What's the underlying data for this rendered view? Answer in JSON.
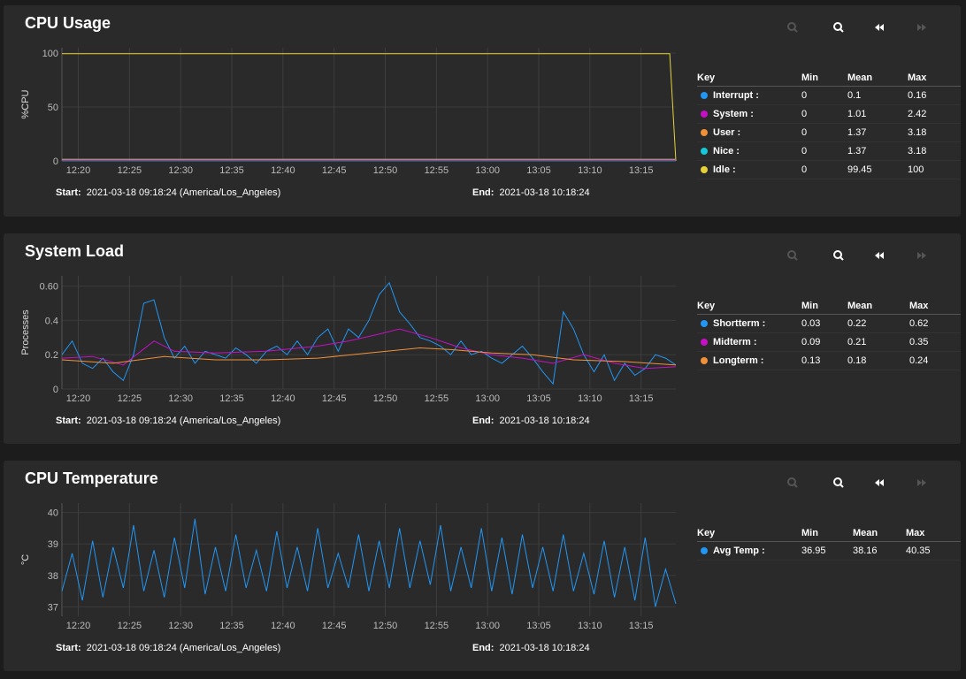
{
  "panels": [
    {
      "id": "cpu",
      "title": "CPU Usage",
      "ylabel": "%CPU",
      "start_label": "Start:",
      "start_value": "2021-03-18 09:18:24 (America/Los_Angeles)",
      "end_label": "End:",
      "end_value": "2021-03-18 10:18:24",
      "legend": {
        "headers": [
          "Key",
          "Min",
          "Mean",
          "Max"
        ],
        "rows": [
          {
            "key": "Interrupt :",
            "color": "#2196f3",
            "min": "0",
            "mean": "0.1",
            "max": "0.16"
          },
          {
            "key": "System :",
            "color": "#c510c5",
            "min": "0",
            "mean": "1.01",
            "max": "2.42"
          },
          {
            "key": "User :",
            "color": "#f0913a",
            "min": "0",
            "mean": "1.37",
            "max": "3.18"
          },
          {
            "key": "Nice :",
            "color": "#14c8d8",
            "min": "0",
            "mean": "1.37",
            "max": "3.18"
          },
          {
            "key": "Idle :",
            "color": "#e6d13a",
            "min": "0",
            "mean": "99.45",
            "max": "100"
          }
        ]
      }
    },
    {
      "id": "load",
      "title": "System Load",
      "ylabel": "Processes",
      "start_label": "Start:",
      "start_value": "2021-03-18 09:18:24 (America/Los_Angeles)",
      "end_label": "End:",
      "end_value": "2021-03-18 10:18:24",
      "legend": {
        "headers": [
          "Key",
          "Min",
          "Mean",
          "Max"
        ],
        "rows": [
          {
            "key": "Shortterm :",
            "color": "#2196f3",
            "min": "0.03",
            "mean": "0.22",
            "max": "0.62"
          },
          {
            "key": "Midterm :",
            "color": "#c510c5",
            "min": "0.09",
            "mean": "0.21",
            "max": "0.35"
          },
          {
            "key": "Longterm :",
            "color": "#f0913a",
            "min": "0.13",
            "mean": "0.18",
            "max": "0.24"
          }
        ]
      }
    },
    {
      "id": "temp",
      "title": "CPU Temperature",
      "ylabel": "°C",
      "start_label": "Start:",
      "start_value": "2021-03-18 09:18:24 (America/Los_Angeles)",
      "end_label": "End:",
      "end_value": "2021-03-18 10:18:24",
      "legend": {
        "headers": [
          "Key",
          "Min",
          "Mean",
          "Max"
        ],
        "rows": [
          {
            "key": "Avg Temp :",
            "color": "#2196f3",
            "min": "36.95",
            "mean": "38.16",
            "max": "40.35"
          }
        ]
      }
    }
  ],
  "toolbar_icons": [
    "zoom-in-icon",
    "zoom-out-icon",
    "rewind-icon",
    "fast-forward-icon"
  ],
  "chart_data": [
    {
      "type": "line",
      "ylabel": "%CPU",
      "x_ticks": [
        "12:20",
        "12:25",
        "12:30",
        "12:35",
        "12:40",
        "12:45",
        "12:50",
        "12:55",
        "13:00",
        "13:05",
        "13:10",
        "13:15"
      ],
      "y_ticks": [
        "0",
        "50",
        "100"
      ],
      "ylim": [
        0,
        105
      ],
      "x_range_minutes": [
        0,
        60
      ],
      "grid": true,
      "series": [
        {
          "name": "Idle",
          "color": "#e6d13a",
          "points": [
            [
              0,
              99.4
            ],
            [
              59.4,
              99.4
            ],
            [
              60,
              0
            ]
          ]
        },
        {
          "name": "Interrupt",
          "color": "#2196f3",
          "points": [
            [
              0,
              0.1
            ],
            [
              60,
              0.1
            ]
          ]
        },
        {
          "name": "Nice",
          "color": "#14c8d8",
          "points": [
            [
              0,
              1.4
            ],
            [
              60,
              1.4
            ]
          ]
        },
        {
          "name": "System",
          "color": "#c510c5",
          "points": [
            [
              0,
              1.0
            ],
            [
              60,
              1.0
            ]
          ]
        },
        {
          "name": "User",
          "color": "#f0913a",
          "points": [
            [
              0,
              1.4
            ],
            [
              60,
              1.4
            ]
          ]
        }
      ]
    },
    {
      "type": "line",
      "ylabel": "Processes",
      "x_ticks": [
        "12:20",
        "12:25",
        "12:30",
        "12:35",
        "12:40",
        "12:45",
        "12:50",
        "12:55",
        "13:00",
        "13:05",
        "13:10",
        "13:15"
      ],
      "y_ticks": [
        "0",
        "0.2",
        "0.4",
        "0.60"
      ],
      "ylim": [
        0,
        0.66
      ],
      "x_range_minutes": [
        0,
        60
      ],
      "grid": true,
      "series": [
        {
          "name": "Shortterm",
          "color": "#2196f3",
          "points": [
            [
              0,
              0.2
            ],
            [
              1,
              0.28
            ],
            [
              2,
              0.15
            ],
            [
              3,
              0.12
            ],
            [
              4,
              0.18
            ],
            [
              5,
              0.1
            ],
            [
              6,
              0.05
            ],
            [
              7,
              0.2
            ],
            [
              8,
              0.5
            ],
            [
              9,
              0.52
            ],
            [
              10,
              0.3
            ],
            [
              11,
              0.18
            ],
            [
              12,
              0.25
            ],
            [
              13,
              0.15
            ],
            [
              14,
              0.22
            ],
            [
              15,
              0.2
            ],
            [
              16,
              0.18
            ],
            [
              17,
              0.24
            ],
            [
              18,
              0.2
            ],
            [
              19,
              0.15
            ],
            [
              20,
              0.22
            ],
            [
              21,
              0.25
            ],
            [
              22,
              0.2
            ],
            [
              23,
              0.28
            ],
            [
              24,
              0.2
            ],
            [
              25,
              0.3
            ],
            [
              26,
              0.35
            ],
            [
              27,
              0.22
            ],
            [
              28,
              0.35
            ],
            [
              29,
              0.3
            ],
            [
              30,
              0.4
            ],
            [
              31,
              0.55
            ],
            [
              32,
              0.62
            ],
            [
              33,
              0.45
            ],
            [
              34,
              0.38
            ],
            [
              35,
              0.3
            ],
            [
              36,
              0.28
            ],
            [
              37,
              0.25
            ],
            [
              38,
              0.2
            ],
            [
              39,
              0.28
            ],
            [
              40,
              0.2
            ],
            [
              41,
              0.22
            ],
            [
              42,
              0.18
            ],
            [
              43,
              0.15
            ],
            [
              44,
              0.2
            ],
            [
              45,
              0.25
            ],
            [
              46,
              0.18
            ],
            [
              47,
              0.1
            ],
            [
              48,
              0.03
            ],
            [
              49,
              0.45
            ],
            [
              50,
              0.35
            ],
            [
              51,
              0.2
            ],
            [
              52,
              0.1
            ],
            [
              53,
              0.2
            ],
            [
              54,
              0.05
            ],
            [
              55,
              0.15
            ],
            [
              56,
              0.08
            ],
            [
              57,
              0.12
            ],
            [
              58,
              0.2
            ],
            [
              59,
              0.18
            ],
            [
              60,
              0.14
            ]
          ]
        },
        {
          "name": "Midterm",
          "color": "#c510c5",
          "points": [
            [
              0,
              0.18
            ],
            [
              3,
              0.19
            ],
            [
              6,
              0.14
            ],
            [
              9,
              0.28
            ],
            [
              11,
              0.22
            ],
            [
              15,
              0.21
            ],
            [
              20,
              0.22
            ],
            [
              25,
              0.25
            ],
            [
              28,
              0.28
            ],
            [
              31,
              0.32
            ],
            [
              33,
              0.35
            ],
            [
              36,
              0.3
            ],
            [
              39,
              0.24
            ],
            [
              42,
              0.2
            ],
            [
              45,
              0.18
            ],
            [
              48,
              0.15
            ],
            [
              51,
              0.2
            ],
            [
              54,
              0.15
            ],
            [
              57,
              0.12
            ],
            [
              60,
              0.13
            ]
          ]
        },
        {
          "name": "Longterm",
          "color": "#f0913a",
          "points": [
            [
              0,
              0.17
            ],
            [
              5,
              0.15
            ],
            [
              10,
              0.19
            ],
            [
              15,
              0.17
            ],
            [
              20,
              0.17
            ],
            [
              25,
              0.18
            ],
            [
              30,
              0.21
            ],
            [
              35,
              0.24
            ],
            [
              38,
              0.23
            ],
            [
              42,
              0.21
            ],
            [
              46,
              0.2
            ],
            [
              50,
              0.17
            ],
            [
              55,
              0.16
            ],
            [
              60,
              0.14
            ]
          ]
        }
      ]
    },
    {
      "type": "line",
      "ylabel": "°C",
      "x_ticks": [
        "12:20",
        "12:25",
        "12:30",
        "12:35",
        "12:40",
        "12:45",
        "12:50",
        "12:55",
        "13:00",
        "13:05",
        "13:10",
        "13:15"
      ],
      "y_ticks": [
        "37",
        "38",
        "39",
        "40"
      ],
      "ylim": [
        36.7,
        40.3
      ],
      "x_range_minutes": [
        0,
        60
      ],
      "grid": true,
      "series": [
        {
          "name": "Avg Temp",
          "color": "#2196f3",
          "points": [
            [
              0,
              37.5
            ],
            [
              1,
              38.7
            ],
            [
              2,
              37.2
            ],
            [
              3,
              39.1
            ],
            [
              4,
              37.3
            ],
            [
              5,
              38.9
            ],
            [
              6,
              37.6
            ],
            [
              7,
              39.6
            ],
            [
              8,
              37.5
            ],
            [
              9,
              38.8
            ],
            [
              10,
              37.3
            ],
            [
              11,
              39.2
            ],
            [
              12,
              37.6
            ],
            [
              13,
              39.8
            ],
            [
              14,
              37.4
            ],
            [
              15,
              38.9
            ],
            [
              16,
              37.5
            ],
            [
              17,
              39.3
            ],
            [
              18,
              37.6
            ],
            [
              19,
              38.8
            ],
            [
              20,
              37.5
            ],
            [
              21,
              39.4
            ],
            [
              22,
              37.6
            ],
            [
              23,
              38.9
            ],
            [
              24,
              37.5
            ],
            [
              25,
              39.5
            ],
            [
              26,
              37.6
            ],
            [
              27,
              38.7
            ],
            [
              28,
              37.6
            ],
            [
              29,
              39.3
            ],
            [
              30,
              37.5
            ],
            [
              31,
              39.1
            ],
            [
              32,
              37.6
            ],
            [
              33,
              39.5
            ],
            [
              34,
              37.6
            ],
            [
              35,
              39.1
            ],
            [
              36,
              37.7
            ],
            [
              37,
              39.6
            ],
            [
              38,
              37.5
            ],
            [
              39,
              38.9
            ],
            [
              40,
              37.6
            ],
            [
              41,
              39.5
            ],
            [
              42,
              37.5
            ],
            [
              43,
              39.2
            ],
            [
              44,
              37.4
            ],
            [
              45,
              39.3
            ],
            [
              46,
              37.6
            ],
            [
              47,
              38.9
            ],
            [
              48,
              37.5
            ],
            [
              49,
              39.3
            ],
            [
              50,
              37.5
            ],
            [
              51,
              38.7
            ],
            [
              52,
              37.4
            ],
            [
              53,
              39.1
            ],
            [
              54,
              37.3
            ],
            [
              55,
              38.9
            ],
            [
              56,
              37.2
            ],
            [
              57,
              39.2
            ],
            [
              58,
              37.0
            ],
            [
              59,
              38.2
            ],
            [
              60,
              37.1
            ]
          ]
        }
      ]
    }
  ]
}
